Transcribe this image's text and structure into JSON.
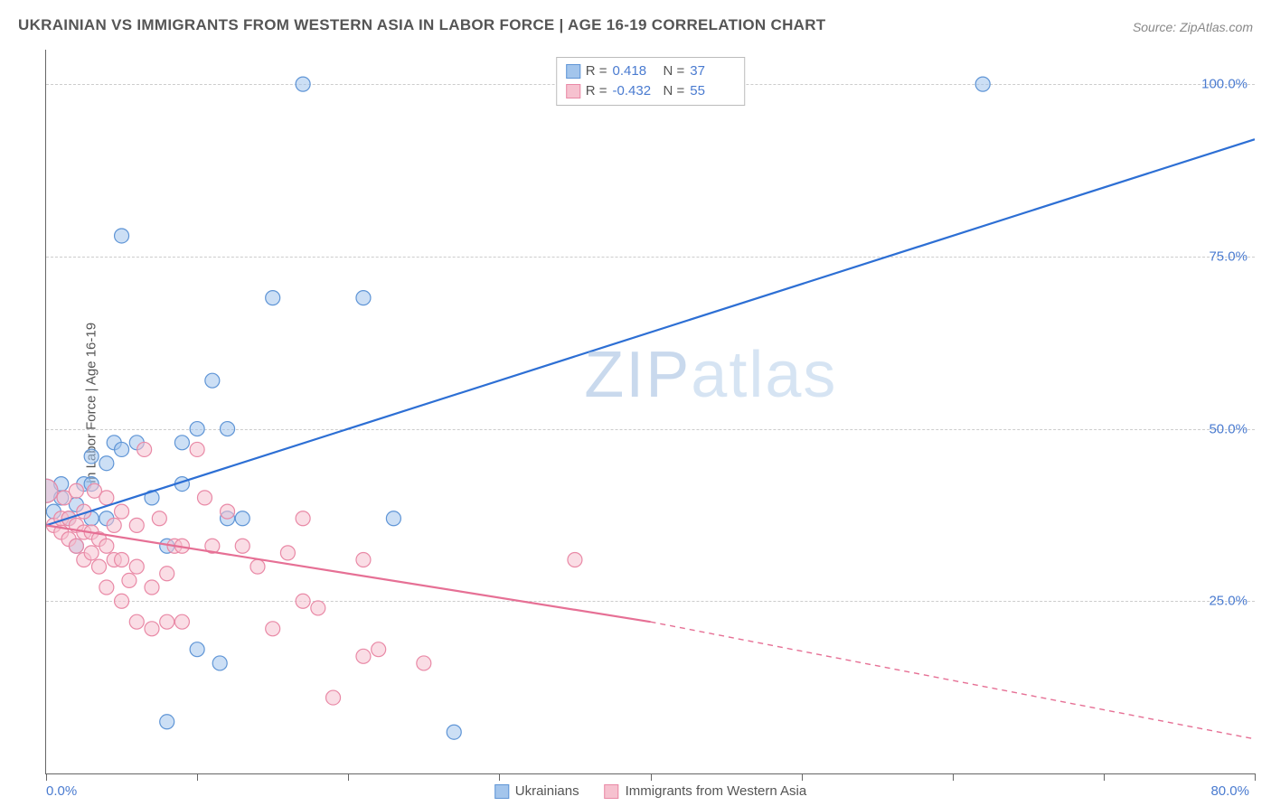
{
  "title": "UKRAINIAN VS IMMIGRANTS FROM WESTERN ASIA IN LABOR FORCE | AGE 16-19 CORRELATION CHART",
  "source": "Source: ZipAtlas.com",
  "ylabel": "In Labor Force | Age 16-19",
  "watermark_bold": "ZIP",
  "watermark_thin": "atlas",
  "chart": {
    "type": "scatter",
    "background_color": "#ffffff",
    "grid_color": "#cccccc",
    "axis_color": "#666666",
    "label_color": "#555555",
    "value_color": "#4a7bd0",
    "xlim": [
      0,
      80
    ],
    "ylim": [
      0,
      105
    ],
    "xticks": [
      0,
      10,
      20,
      30,
      40,
      50,
      60,
      70,
      80
    ],
    "xticks_labeled": {
      "0": "0.0%",
      "80": "80.0%"
    },
    "yticks": [
      25,
      50,
      75,
      100
    ],
    "ytick_labels": [
      "25.0%",
      "50.0%",
      "75.0%",
      "100.0%"
    ],
    "marker_radius": 8,
    "marker_radius_large": 13,
    "marker_opacity": 0.55,
    "marker_stroke_width": 1.2,
    "line_width": 2.2
  },
  "series": [
    {
      "label": "Ukrainians",
      "fill_color": "#a3c5ec",
      "stroke_color": "#5f95d6",
      "line_color": "#2d6fd4",
      "R": "0.418",
      "N": "37",
      "trend_solid": {
        "x1": 0,
        "y1": 36,
        "x2": 80,
        "y2": 92
      },
      "trend_dashed": null,
      "points": [
        [
          0,
          41,
          13
        ],
        [
          0.5,
          38
        ],
        [
          1,
          40
        ],
        [
          1,
          42
        ],
        [
          1.5,
          37
        ],
        [
          2,
          33
        ],
        [
          2,
          39
        ],
        [
          2.5,
          42
        ],
        [
          3,
          37
        ],
        [
          3,
          46
        ],
        [
          3,
          42
        ],
        [
          4,
          45
        ],
        [
          4,
          37
        ],
        [
          4.5,
          48
        ],
        [
          5,
          78
        ],
        [
          5,
          47
        ],
        [
          6,
          48
        ],
        [
          7,
          40
        ],
        [
          8,
          33
        ],
        [
          8,
          7.5
        ],
        [
          9,
          42
        ],
        [
          9,
          48
        ],
        [
          10,
          18
        ],
        [
          10,
          50
        ],
        [
          11,
          57
        ],
        [
          11.5,
          16
        ],
        [
          12,
          37
        ],
        [
          12,
          50
        ],
        [
          13,
          37
        ],
        [
          15,
          69
        ],
        [
          17,
          100
        ],
        [
          21,
          69
        ],
        [
          23,
          37
        ],
        [
          27,
          6
        ],
        [
          62,
          100
        ]
      ]
    },
    {
      "label": "Immigrants from Western Asia",
      "fill_color": "#f6c1cf",
      "stroke_color": "#e989a6",
      "line_color": "#e67095",
      "R": "-0.432",
      "N": "55",
      "trend_solid": {
        "x1": 0,
        "y1": 36,
        "x2": 40,
        "y2": 22
      },
      "trend_dashed": {
        "x1": 40,
        "y1": 22,
        "x2": 80,
        "y2": 5
      },
      "points": [
        [
          0,
          41,
          13
        ],
        [
          0.5,
          36
        ],
        [
          1,
          35
        ],
        [
          1,
          37
        ],
        [
          1.2,
          40
        ],
        [
          1.5,
          34
        ],
        [
          1.5,
          37
        ],
        [
          2,
          33
        ],
        [
          2,
          36
        ],
        [
          2,
          41
        ],
        [
          2.5,
          31
        ],
        [
          2.5,
          35
        ],
        [
          2.5,
          38
        ],
        [
          3,
          32
        ],
        [
          3,
          35
        ],
        [
          3.2,
          41
        ],
        [
          3.5,
          30
        ],
        [
          3.5,
          34
        ],
        [
          4,
          27
        ],
        [
          4,
          33
        ],
        [
          4,
          40
        ],
        [
          4.5,
          31
        ],
        [
          4.5,
          36
        ],
        [
          5,
          25
        ],
        [
          5,
          31
        ],
        [
          5,
          38
        ],
        [
          5.5,
          28
        ],
        [
          6,
          22
        ],
        [
          6,
          30
        ],
        [
          6,
          36
        ],
        [
          6.5,
          47
        ],
        [
          7,
          21
        ],
        [
          7,
          27
        ],
        [
          7.5,
          37
        ],
        [
          8,
          22
        ],
        [
          8,
          29
        ],
        [
          8.5,
          33
        ],
        [
          9,
          22
        ],
        [
          9,
          33
        ],
        [
          10,
          47
        ],
        [
          10.5,
          40
        ],
        [
          11,
          33
        ],
        [
          12,
          38
        ],
        [
          13,
          33
        ],
        [
          14,
          30
        ],
        [
          15,
          21
        ],
        [
          16,
          32
        ],
        [
          17,
          25
        ],
        [
          17,
          37
        ],
        [
          18,
          24
        ],
        [
          19,
          11
        ],
        [
          21,
          17
        ],
        [
          21,
          31
        ],
        [
          22,
          18
        ],
        [
          25,
          16
        ],
        [
          35,
          31
        ]
      ]
    }
  ],
  "stats_box": {
    "R_label": "R =",
    "N_label": "N ="
  },
  "bottom_legend": {
    "items": [
      "Ukrainians",
      "Immigrants from Western Asia"
    ]
  }
}
